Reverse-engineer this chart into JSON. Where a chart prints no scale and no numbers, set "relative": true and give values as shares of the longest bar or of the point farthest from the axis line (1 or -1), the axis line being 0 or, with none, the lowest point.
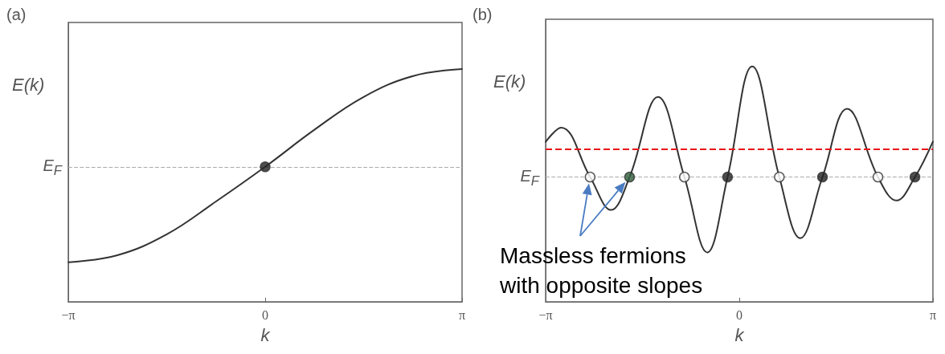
{
  "chart_data": [
    {
      "type": "line",
      "title": "(a)",
      "xlabel": "k",
      "ylabel": "E(k)",
      "relative": true,
      "xlim": [
        -3.1416,
        3.1416
      ],
      "xticks": [
        {
          "value": -3.1416,
          "label": "−π"
        },
        {
          "value": 0,
          "label": "0"
        },
        {
          "value": 3.1416,
          "label": "π"
        }
      ],
      "ref_lines": [
        {
          "axis": "y",
          "value": 0.58,
          "label": "E$_{F}$",
          "color": "#aaaaaa",
          "line_style": "dashed"
        }
      ],
      "series": [
        {
          "type": "line",
          "color": "#333333",
          "x": [
            -3.14,
            -2.36,
            -1.57,
            -0.79,
            0,
            0.79,
            1.57,
            2.36,
            3.14
          ],
          "values": [
            0.17,
            0.2,
            0.29,
            0.43,
            0.58,
            0.74,
            0.88,
            0.97,
            1.0
          ]
        },
        {
          "type": "scatter",
          "marker": "circle",
          "color": "#222222",
          "x": [
            0
          ],
          "values": [
            0.58
          ]
        }
      ]
    },
    {
      "type": "line",
      "title": "(b)",
      "xlabel": "k",
      "ylabel": "E(k)",
      "relative": true,
      "xlim": [
        -3.1416,
        3.1416
      ],
      "xticks": [
        {
          "value": -3.1416,
          "label": "−π"
        },
        {
          "value": 0,
          "label": "0"
        },
        {
          "value": 3.1416,
          "label": "π"
        }
      ],
      "ref_lines": [
        {
          "axis": "y",
          "value": 0.53,
          "label": "E$_{F}$",
          "color": "#aaaaaa",
          "line_style": "dashed"
        },
        {
          "axis": "y",
          "value": 0.65,
          "color": "#e8141a",
          "line_style": "dashed"
        }
      ],
      "annotations": [
        "Massless fermions\nwith opposite slopes"
      ],
      "series": [
        {
          "type": "line",
          "color": "#333333",
          "x": [
            -3.14,
            -2.89,
            -2.42,
            -2.08,
            -1.78,
            -1.32,
            -0.89,
            -0.52,
            -0.19,
            0.21,
            0.65,
            0.99,
            1.35,
            1.75,
            2.25,
            2.55,
            2.85,
            3.14
          ],
          "values": [
            0.68,
            0.74,
            0.53,
            0.39,
            0.53,
            0.87,
            0.53,
            0.21,
            0.53,
            1.0,
            0.53,
            0.27,
            0.53,
            0.82,
            0.53,
            0.43,
            0.53,
            0.68
          ]
        },
        {
          "type": "scatter",
          "marker": "circle",
          "color": "#ffffff",
          "x": [
            -2.42,
            -0.89,
            0.65,
            2.25
          ],
          "values": [
            0.53,
            0.53,
            0.53,
            0.53
          ]
        },
        {
          "type": "scatter",
          "marker": "circle",
          "color": "#222222",
          "colors": [
            "#2f5e3c",
            "#222222",
            "#222222",
            "#222222"
          ],
          "x": [
            -1.78,
            -0.19,
            1.35,
            2.85
          ],
          "values": [
            0.53,
            0.53,
            0.53,
            0.53
          ]
        }
      ]
    }
  ]
}
